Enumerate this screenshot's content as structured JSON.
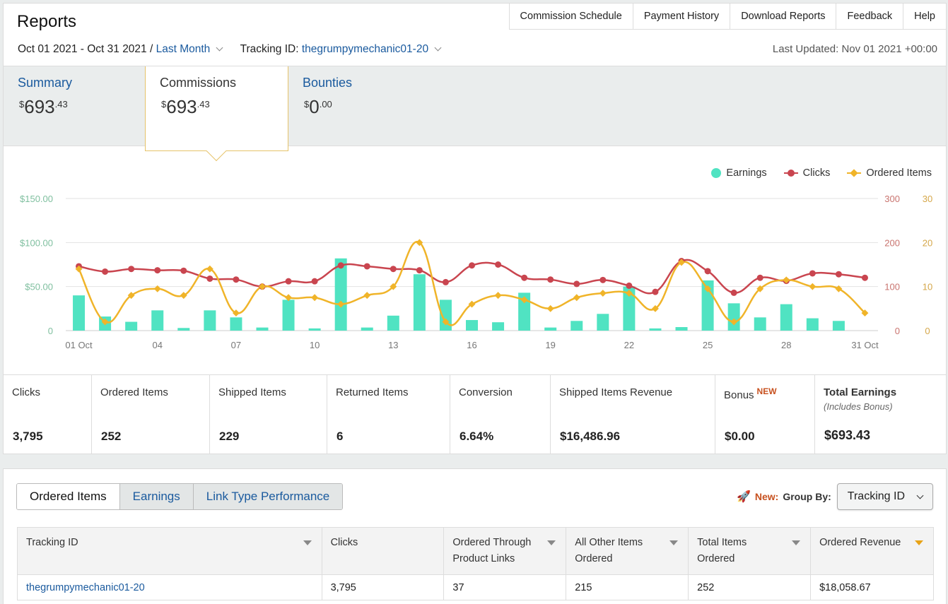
{
  "header": {
    "title": "Reports",
    "nav": [
      "Commission Schedule",
      "Payment History",
      "Download Reports",
      "Feedback",
      "Help"
    ]
  },
  "filters": {
    "date_range": "Oct 01 2021 - Oct 31 2021",
    "separator": "/",
    "preset": "Last Month",
    "tracking_label": "Tracking ID:",
    "tracking_value": "thegrumpymechanic01-20",
    "last_updated": "Last Updated: Nov 01 2021 +00:00"
  },
  "metric_tabs": [
    {
      "label": "Summary",
      "currency": "$",
      "whole": "693",
      "cents": ".43"
    },
    {
      "label": "Commissions",
      "currency": "$",
      "whole": "693",
      "cents": ".43"
    },
    {
      "label": "Bounties",
      "currency": "$",
      "whole": "0",
      "cents": ".00"
    }
  ],
  "legend": [
    "Earnings",
    "Clicks",
    "Ordered Items"
  ],
  "colors": {
    "earnings": "#50e3c2",
    "clicks": "#c9454f",
    "ordered": "#f0b429",
    "link": "#1a5a9e",
    "accent": "#e6c36a"
  },
  "chart_data": {
    "type": "bar+line",
    "x": [
      "01 Oct",
      "02",
      "03",
      "04",
      "05",
      "06",
      "07",
      "08",
      "09",
      "10",
      "11",
      "12",
      "13",
      "14",
      "15",
      "16",
      "17",
      "18",
      "19",
      "20",
      "21",
      "22",
      "23",
      "24",
      "25",
      "26",
      "27",
      "28",
      "29",
      "30",
      "31 Oct"
    ],
    "x_tick_labels": [
      "01 Oct",
      "04",
      "07",
      "10",
      "13",
      "16",
      "19",
      "22",
      "25",
      "28",
      "31 Oct"
    ],
    "series": [
      {
        "name": "Earnings",
        "type": "bar",
        "axis": "left",
        "values": [
          40,
          16,
          10,
          23,
          3,
          23,
          15,
          3.5,
          35,
          2.5,
          82,
          3.5,
          17,
          64,
          35,
          12,
          9.5,
          43,
          3.5,
          11,
          19,
          50,
          2.5,
          4,
          57,
          31,
          15,
          30,
          14,
          11,
          0
        ]
      },
      {
        "name": "Clicks",
        "type": "line",
        "axis": "right1",
        "values": [
          146,
          134,
          140,
          137,
          136,
          118,
          116,
          100,
          112,
          112,
          148,
          146,
          140,
          137,
          110,
          148,
          150,
          120,
          116,
          106,
          115,
          102,
          88,
          158,
          135,
          86,
          120,
          113,
          130,
          128,
          120
        ]
      },
      {
        "name": "Ordered Items",
        "type": "line",
        "axis": "right2",
        "values": [
          14,
          2,
          8,
          9.5,
          8,
          14,
          4,
          10,
          7.5,
          7.5,
          6,
          8,
          10,
          20,
          2,
          6,
          8,
          7,
          5,
          7.5,
          8.5,
          8.5,
          5,
          15.5,
          9.5,
          2,
          9.5,
          11.5,
          10,
          9.5,
          4
        ]
      }
    ],
    "y_left": {
      "ticks": [
        "0",
        "$50.00",
        "$100.00",
        "$150.00"
      ],
      "range": [
        0,
        150
      ]
    },
    "y_right1": {
      "ticks": [
        "0",
        "100",
        "200",
        "300"
      ],
      "range": [
        0,
        300
      ]
    },
    "y_right2": {
      "ticks": [
        "0",
        "10",
        "20",
        "30"
      ],
      "range": [
        0,
        30
      ]
    },
    "legend_position": "top-right",
    "grid": true
  },
  "stats": [
    {
      "label": "Clicks",
      "value": "3,795"
    },
    {
      "label": "Ordered Items",
      "value": "252"
    },
    {
      "label": "Shipped Items",
      "value": "229"
    },
    {
      "label": "Returned Items",
      "value": "6"
    },
    {
      "label": "Conversion",
      "value": "6.64%"
    },
    {
      "label": "Shipped Items Revenue",
      "value": "$16,486.96"
    },
    {
      "label": "Bonus",
      "badge": "NEW",
      "value": "$0.00"
    },
    {
      "label": "Total Earnings",
      "sub": "(Includes Bonus)",
      "value": "$693.43"
    }
  ],
  "bottom_tabs": [
    "Ordered Items",
    "Earnings",
    "Link Type Performance"
  ],
  "group_by": {
    "new_label": "New:",
    "label": "Group By:",
    "value": "Tracking ID"
  },
  "table": {
    "headers": [
      "Tracking ID",
      "Clicks",
      "Ordered Through Product Links",
      "All Other Items Ordered",
      "Total Items Ordered",
      "Ordered Revenue"
    ],
    "rows": [
      [
        "thegrumpymechanic01-20",
        "3,795",
        "37",
        "215",
        "252",
        "$18,058.67"
      ]
    ]
  }
}
